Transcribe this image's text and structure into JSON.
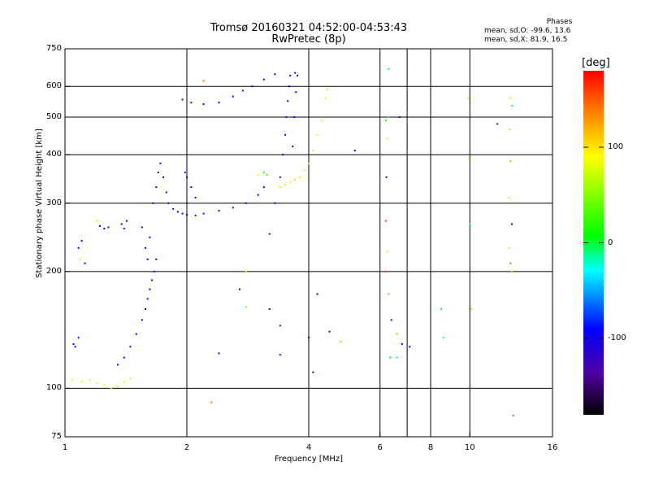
{
  "header": {
    "title_line1": "Tromsø 20160321 04:52:00-04:53:43",
    "title_line2": "RwPretec (8p)"
  },
  "phase_box": {
    "title": "Phases",
    "line_o": "mean, sd,O: -99.6, 13.6",
    "line_x": "mean, sd,X:  81.9, 16.5"
  },
  "colorbar": {
    "unit_label": "[deg]",
    "ticks": [
      {
        "label": "100",
        "value": 100
      },
      {
        "label": "0",
        "value": 0
      },
      {
        "label": "-100",
        "value": -100
      }
    ],
    "range": [
      -180,
      180
    ]
  },
  "chart_data": {
    "type": "scatter",
    "title": "Tromsø 20160321 04:52:00-04:53:43",
    "subtitle": "RwPretec (8p)",
    "xlabel": "Frequency [MHz]",
    "ylabel": "Stationary phase Virtual Height [km]",
    "x_scale": "log",
    "y_scale": "log",
    "xlim": [
      1,
      16
    ],
    "ylim": [
      75,
      750
    ],
    "x_ticks": [
      {
        "label": "1",
        "value": 1
      },
      {
        "label": "2",
        "value": 2
      },
      {
        "label": "4",
        "value": 4
      },
      {
        "label": "6",
        "value": 6
      },
      {
        "label": "8",
        "value": 8
      },
      {
        "label": "10",
        "value": 10
      },
      {
        "label": "16",
        "value": 16
      }
    ],
    "y_ticks": [
      {
        "label": "75",
        "value": 75
      },
      {
        "label": "100",
        "value": 100
      },
      {
        "label": "200",
        "value": 200
      },
      {
        "label": "300",
        "value": 300
      },
      {
        "label": "400",
        "value": 400
      },
      {
        "label": "500",
        "value": 500
      },
      {
        "label": "600",
        "value": 600
      },
      {
        "label": "750",
        "value": 750
      }
    ],
    "x_gridlines": [
      2,
      4,
      6,
      7,
      8,
      10
    ],
    "y_gridlines": [
      100,
      200,
      300,
      400,
      500,
      600
    ],
    "colormap": "rainbow phase [deg]",
    "series": [
      {
        "values": [
          [
            1.05,
            130,
            -90
          ],
          [
            1.06,
            128,
            -95
          ],
          [
            1.08,
            135,
            -88
          ],
          [
            1.04,
            105,
            80
          ],
          [
            1.1,
            104,
            75
          ],
          [
            1.15,
            105,
            82
          ],
          [
            1.2,
            103,
            78
          ],
          [
            1.25,
            102,
            85
          ],
          [
            1.3,
            100,
            80
          ],
          [
            1.35,
            101,
            75
          ],
          [
            1.4,
            104,
            82
          ],
          [
            1.45,
            106,
            78
          ],
          [
            1.08,
            230,
            -95
          ],
          [
            1.1,
            240,
            -90
          ],
          [
            1.09,
            215,
            80
          ],
          [
            1.12,
            210,
            -95
          ],
          [
            1.2,
            270,
            70
          ],
          [
            1.22,
            262,
            -95
          ],
          [
            1.25,
            258,
            -90
          ],
          [
            1.28,
            260,
            -100
          ],
          [
            1.38,
            265,
            -95
          ],
          [
            1.4,
            258,
            -90
          ],
          [
            1.42,
            270,
            -95
          ],
          [
            1.35,
            115,
            -100
          ],
          [
            1.4,
            120,
            -95
          ],
          [
            1.45,
            128,
            -100
          ],
          [
            1.5,
            138,
            -95
          ],
          [
            1.55,
            150,
            -100
          ],
          [
            1.58,
            160,
            -95
          ],
          [
            1.6,
            170,
            -100
          ],
          [
            1.62,
            180,
            -95
          ],
          [
            1.64,
            190,
            -100
          ],
          [
            1.66,
            200,
            -95
          ],
          [
            1.68,
            215,
            -100
          ],
          [
            1.55,
            260,
            -95
          ],
          [
            1.58,
            230,
            -100
          ],
          [
            1.6,
            215,
            -95
          ],
          [
            1.62,
            245,
            -100
          ],
          [
            1.65,
            300,
            -95
          ],
          [
            1.68,
            330,
            -100
          ],
          [
            1.7,
            360,
            -95
          ],
          [
            1.72,
            380,
            -100
          ],
          [
            1.75,
            350,
            -95
          ],
          [
            1.78,
            320,
            -100
          ],
          [
            1.8,
            300,
            -95
          ],
          [
            1.85,
            290,
            -100
          ],
          [
            1.9,
            285,
            -95
          ],
          [
            1.95,
            282,
            -100
          ],
          [
            2.0,
            280,
            -95
          ],
          [
            2.1,
            279,
            -100
          ],
          [
            2.2,
            282,
            -95
          ],
          [
            2.4,
            287,
            -100
          ],
          [
            2.6,
            292,
            -95
          ],
          [
            2.8,
            300,
            -100
          ],
          [
            3.0,
            315,
            -95
          ],
          [
            3.1,
            330,
            -100
          ],
          [
            2.0,
            350,
            -95
          ],
          [
            2.05,
            330,
            -100
          ],
          [
            2.1,
            310,
            -95
          ],
          [
            1.98,
            360,
            -100
          ],
          [
            1.95,
            555,
            -95
          ],
          [
            2.05,
            545,
            -100
          ],
          [
            2.2,
            540,
            -95
          ],
          [
            2.4,
            545,
            -100
          ],
          [
            2.6,
            565,
            -95
          ],
          [
            2.75,
            585,
            -100
          ],
          [
            2.9,
            600,
            -95
          ],
          [
            3.1,
            625,
            -100
          ],
          [
            3.3,
            645,
            -95
          ],
          [
            3.3,
            300,
            -95
          ],
          [
            3.4,
            350,
            -100
          ],
          [
            3.45,
            400,
            -95
          ],
          [
            3.5,
            450,
            -100
          ],
          [
            3.52,
            500,
            -95
          ],
          [
            3.55,
            550,
            -100
          ],
          [
            3.58,
            600,
            -95
          ],
          [
            3.6,
            640,
            -100
          ],
          [
            3.7,
            650,
            -95
          ],
          [
            3.75,
            640,
            -100
          ],
          [
            3.72,
            580,
            -95
          ],
          [
            3.68,
            500,
            -100
          ],
          [
            3.65,
            420,
            -95
          ],
          [
            3.4,
            330,
            95
          ],
          [
            3.5,
            335,
            100
          ],
          [
            3.6,
            340,
            95
          ],
          [
            3.7,
            345,
            100
          ],
          [
            3.8,
            350,
            95
          ],
          [
            3.9,
            365,
            100
          ],
          [
            4.0,
            380,
            95
          ],
          [
            4.1,
            410,
            100
          ],
          [
            4.2,
            450,
            95
          ],
          [
            4.3,
            490,
            100
          ],
          [
            4.4,
            560,
            95
          ],
          [
            4.45,
            590,
            100
          ],
          [
            3.1,
            360,
            20
          ],
          [
            3.15,
            355,
            30
          ],
          [
            3.0,
            355,
            90
          ],
          [
            6.3,
            500,
            -10
          ],
          [
            6.2,
            490,
            20
          ],
          [
            6.25,
            440,
            80
          ],
          [
            6.22,
            350,
            -110
          ],
          [
            6.2,
            270,
            160
          ],
          [
            6.25,
            225,
            100
          ],
          [
            6.18,
            200,
            160
          ],
          [
            6.3,
            175,
            130
          ],
          [
            6.4,
            150,
            -110
          ],
          [
            6.35,
            120,
            20
          ],
          [
            6.6,
            120,
            -10
          ],
          [
            6.6,
            138,
            120
          ],
          [
            6.8,
            130,
            -100
          ],
          [
            7.1,
            128,
            -100
          ],
          [
            6.7,
            500,
            -110
          ],
          [
            6.3,
            665,
            -20
          ],
          [
            8.5,
            160,
            -10
          ],
          [
            8.6,
            135,
            -10
          ],
          [
            9.9,
            560,
            100
          ],
          [
            9.95,
            390,
            100
          ],
          [
            10.0,
            265,
            -20
          ],
          [
            10.1,
            160,
            100
          ],
          [
            11.7,
            480,
            -140
          ],
          [
            12.6,
            560,
            100
          ],
          [
            12.7,
            535,
            -20
          ],
          [
            12.55,
            465,
            100
          ],
          [
            12.6,
            385,
            120
          ],
          [
            12.5,
            310,
            100
          ],
          [
            12.7,
            265,
            -110
          ],
          [
            12.5,
            230,
            100
          ],
          [
            12.6,
            210,
            140
          ],
          [
            12.7,
            200,
            120
          ],
          [
            12.8,
            85,
            150
          ],
          [
            5.2,
            410,
            -100
          ],
          [
            4.0,
            135,
            -100
          ],
          [
            4.1,
            110,
            -100
          ],
          [
            4.5,
            140,
            -100
          ],
          [
            4.8,
            132,
            50
          ],
          [
            3.4,
            122,
            -100
          ],
          [
            3.4,
            145,
            -100
          ],
          [
            3.2,
            160,
            -100
          ],
          [
            2.8,
            162,
            50
          ],
          [
            2.7,
            180,
            -100
          ],
          [
            2.4,
            123,
            -100
          ],
          [
            2.3,
            92,
            140
          ],
          [
            4.2,
            175,
            -100
          ],
          [
            3.2,
            250,
            -100
          ],
          [
            2.8,
            200,
            100
          ],
          [
            2.2,
            620,
            140
          ]
        ]
      }
    ]
  }
}
